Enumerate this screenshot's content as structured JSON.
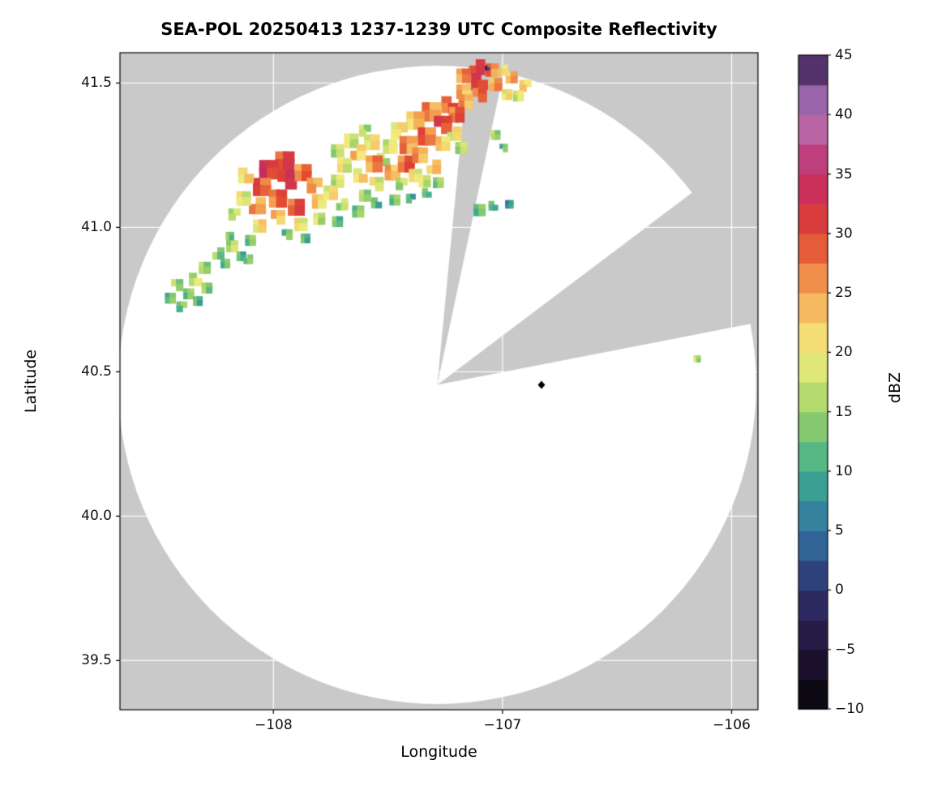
{
  "chart_data": {
    "type": "heatmap",
    "title": "SEA-POL 20250413 1237-1239 UTC Composite Reflectivity",
    "xlabel": "Longitude",
    "ylabel": "Latitude",
    "colorbar_label": "dBZ",
    "xlim": [
      -108.67,
      -105.885
    ],
    "ylim": [
      39.33,
      41.605
    ],
    "xticks": [
      -108,
      -107,
      -106
    ],
    "xtick_labels": [
      "−108",
      "−107",
      "−106"
    ],
    "yticks": [
      39.5,
      40.0,
      40.5,
      41.0,
      41.5
    ],
    "ytick_labels": [
      "39.5",
      "40.0",
      "40.5",
      "41.0",
      "41.5"
    ],
    "grid": true,
    "colorbar": {
      "min": -10,
      "max": 45,
      "step": 2.5,
      "ticks": [
        -10,
        -5,
        0,
        5,
        10,
        15,
        20,
        25,
        30,
        35,
        40,
        45
      ],
      "tick_labels": [
        "−10",
        "−5",
        "0",
        "5",
        "10",
        "15",
        "20",
        "25",
        "30",
        "35",
        "40",
        "45"
      ]
    },
    "colormap_stops": [
      [
        -10,
        "#050505"
      ],
      [
        -5,
        "#241539"
      ],
      [
        0,
        "#30316f"
      ],
      [
        5,
        "#3173a4"
      ],
      [
        10,
        "#3fae8f"
      ],
      [
        15,
        "#9fd266"
      ],
      [
        20,
        "#f4ee7f"
      ],
      [
        25,
        "#f5a954"
      ],
      [
        30,
        "#e0422f"
      ],
      [
        35,
        "#c22a68"
      ],
      [
        40,
        "#b678b6"
      ],
      [
        42.5,
        "#7c4f9e"
      ],
      [
        45,
        "#2e1437"
      ]
    ],
    "radar": {
      "center": [
        -107.285,
        40.455
      ],
      "radius_deg_lat": 1.105,
      "coverage_color": "#ffffff",
      "background_color": "#c9c9c9",
      "missing_sectors_deg": [
        [
          5.5,
          12
        ],
        [
          53,
          79
        ]
      ]
    },
    "marker": {
      "type": "diamond",
      "lon": -106.83,
      "lat": 40.455,
      "color": "#000000"
    },
    "echo_cells": [
      [
        -107.11,
        41.555,
        30,
        0.065
      ],
      [
        -107.045,
        41.545,
        27,
        0.055
      ],
      [
        -107.17,
        41.525,
        26,
        0.06
      ],
      [
        -107.1,
        41.505,
        30,
        0.07
      ],
      [
        -107.03,
        41.495,
        25,
        0.055
      ],
      [
        -107.17,
        41.47,
        24,
        0.06
      ],
      [
        -107.1,
        41.458,
        27,
        0.06
      ],
      [
        -107.065,
        41.552,
        44,
        0.02
      ],
      [
        -106.96,
        41.52,
        24,
        0.05
      ],
      [
        -106.9,
        41.49,
        21,
        0.05
      ],
      [
        -106.93,
        41.455,
        18,
        0.045
      ],
      [
        -107.0,
        41.545,
        22,
        0.045
      ],
      [
        -106.98,
        41.46,
        20,
        0.045
      ],
      [
        -107.16,
        41.435,
        25,
        0.06
      ],
      [
        -107.23,
        41.425,
        29,
        0.07
      ],
      [
        -107.31,
        41.4,
        26,
        0.08
      ],
      [
        -107.2,
        41.39,
        28,
        0.065
      ],
      [
        -107.26,
        41.355,
        31,
        0.075
      ],
      [
        -107.38,
        41.37,
        23,
        0.075
      ],
      [
        -107.33,
        41.315,
        28,
        0.075
      ],
      [
        -107.45,
        41.335,
        21,
        0.07
      ],
      [
        -107.41,
        41.285,
        26,
        0.075
      ],
      [
        -107.21,
        41.325,
        20,
        0.06
      ],
      [
        -107.26,
        41.29,
        22,
        0.06
      ],
      [
        -107.49,
        41.28,
        18,
        0.06
      ],
      [
        -107.52,
        41.235,
        17,
        0.055
      ],
      [
        -107.18,
        41.275,
        16,
        0.05
      ],
      [
        -107.03,
        41.32,
        15,
        0.04
      ],
      [
        -106.995,
        41.275,
        12,
        0.035
      ],
      [
        -107.66,
        41.3,
        18,
        0.06
      ],
      [
        -107.72,
        41.265,
        16,
        0.055
      ],
      [
        -107.6,
        41.335,
        16,
        0.05
      ],
      [
        -107.57,
        41.295,
        20,
        0.065
      ],
      [
        -107.63,
        41.26,
        23,
        0.065
      ],
      [
        -107.56,
        41.22,
        26,
        0.07
      ],
      [
        -107.48,
        41.19,
        24,
        0.065
      ],
      [
        -107.62,
        41.18,
        21,
        0.06
      ],
      [
        -107.69,
        41.215,
        19,
        0.06
      ],
      [
        -107.72,
        41.16,
        17,
        0.055
      ],
      [
        -107.55,
        41.15,
        19,
        0.06
      ],
      [
        -107.42,
        41.22,
        28,
        0.07
      ],
      [
        -107.36,
        41.25,
        25,
        0.065
      ],
      [
        -107.44,
        41.15,
        16,
        0.05
      ],
      [
        -107.38,
        41.18,
        20,
        0.055
      ],
      [
        -107.3,
        41.21,
        22,
        0.06
      ],
      [
        -107.34,
        41.16,
        18,
        0.05
      ],
      [
        -107.28,
        41.155,
        14,
        0.045
      ],
      [
        -107.33,
        41.12,
        11,
        0.04
      ],
      [
        -107.95,
        41.23,
        30,
        0.08
      ],
      [
        -108.02,
        41.2,
        32,
        0.08
      ],
      [
        -107.94,
        41.165,
        31,
        0.08
      ],
      [
        -108.05,
        41.14,
        29,
        0.075
      ],
      [
        -107.87,
        41.19,
        27,
        0.07
      ],
      [
        -107.82,
        41.145,
        24,
        0.065
      ],
      [
        -107.98,
        41.1,
        28,
        0.075
      ],
      [
        -108.07,
        41.075,
        26,
        0.07
      ],
      [
        -107.9,
        41.07,
        29,
        0.07
      ],
      [
        -107.8,
        41.09,
        22,
        0.06
      ],
      [
        -108.12,
        41.18,
        22,
        0.065
      ],
      [
        -108.13,
        41.1,
        19,
        0.06
      ],
      [
        -107.75,
        41.12,
        20,
        0.06
      ],
      [
        -107.98,
        41.035,
        24,
        0.06
      ],
      [
        -108.06,
        41.005,
        21,
        0.055
      ],
      [
        -107.88,
        41.01,
        20,
        0.055
      ],
      [
        -108.17,
        41.045,
        17,
        0.05
      ],
      [
        -107.8,
        41.03,
        17,
        0.05
      ],
      [
        -107.7,
        41.08,
        16,
        0.05
      ],
      [
        -107.72,
        41.02,
        12,
        0.045
      ],
      [
        -107.63,
        41.055,
        13,
        0.05
      ],
      [
        -107.55,
        41.085,
        11,
        0.045
      ],
      [
        -107.47,
        41.095,
        13,
        0.045
      ],
      [
        -107.6,
        41.11,
        15,
        0.05
      ],
      [
        -107.94,
        40.975,
        12,
        0.045
      ],
      [
        -107.86,
        40.962,
        11,
        0.04
      ],
      [
        -108.1,
        40.955,
        13,
        0.045
      ],
      [
        -107.4,
        41.1,
        10,
        0.04
      ],
      [
        -108.18,
        40.935,
        16,
        0.05
      ],
      [
        -108.24,
        40.91,
        14,
        0.05
      ],
      [
        -108.21,
        40.875,
        12,
        0.04
      ],
      [
        -108.3,
        40.86,
        15,
        0.05
      ],
      [
        -108.34,
        40.82,
        17,
        0.055
      ],
      [
        -108.29,
        40.79,
        14,
        0.045
      ],
      [
        -108.37,
        40.77,
        13,
        0.045
      ],
      [
        -108.42,
        40.8,
        15,
        0.05
      ],
      [
        -108.45,
        40.755,
        12,
        0.045
      ],
      [
        -108.33,
        40.745,
        11,
        0.04
      ],
      [
        -108.4,
        40.725,
        13,
        0.045
      ],
      [
        -108.14,
        40.9,
        11,
        0.04
      ],
      [
        -108.11,
        40.89,
        12,
        0.04
      ],
      [
        -108.19,
        40.97,
        13,
        0.035
      ],
      [
        -107.1,
        41.06,
        12,
        0.05
      ],
      [
        -107.04,
        41.075,
        10,
        0.04
      ],
      [
        -106.97,
        41.08,
        7,
        0.035
      ],
      [
        -106.15,
        40.545,
        16,
        0.03
      ]
    ]
  }
}
